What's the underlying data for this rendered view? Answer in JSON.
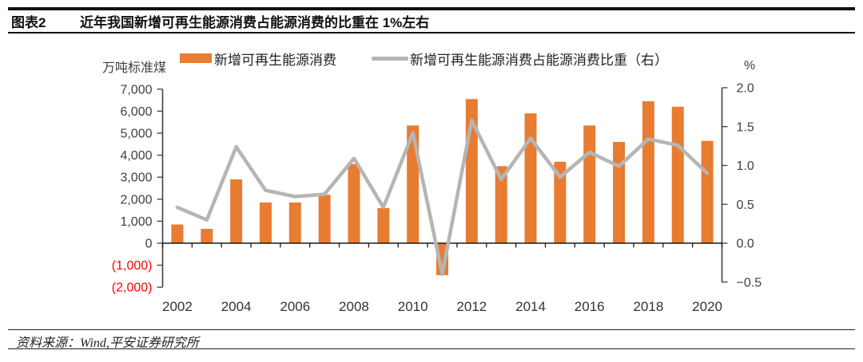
{
  "header": {
    "tag": "图表2",
    "title": "近年我国新增可再生能源消费占能源消费的比重在 1%左右"
  },
  "footer": {
    "source": "资料来源：Wind,平安证券研究所"
  },
  "chart_data": {
    "type": "bar+line combo (dual axis)",
    "grid": false,
    "legend_position": "top",
    "categories": [
      2002,
      2003,
      2004,
      2005,
      2006,
      2007,
      2008,
      2009,
      2010,
      2011,
      2012,
      2013,
      2014,
      2015,
      2016,
      2017,
      2018,
      2019,
      2020
    ],
    "x_tick_labels": [
      "2002",
      "2004",
      "2006",
      "2008",
      "2010",
      "2012",
      "2014",
      "2016",
      "2018",
      "2020"
    ],
    "series": [
      {
        "name": "新增可再生能源消费",
        "type": "bar",
        "axis": "left",
        "color": "#E87C30",
        "values": [
          850,
          650,
          2900,
          1850,
          1850,
          2200,
          3600,
          1600,
          5350,
          -1450,
          6550,
          3500,
          5900,
          3700,
          5350,
          4600,
          6450,
          6200,
          4650
        ]
      },
      {
        "name": "新增可再生能源消费占能源消费比重（右）",
        "type": "line",
        "axis": "right",
        "color": "#B5B5B5",
        "values": [
          0.46,
          0.3,
          1.24,
          0.68,
          0.6,
          0.63,
          1.09,
          0.46,
          1.42,
          -0.4,
          1.58,
          0.82,
          1.35,
          0.85,
          1.17,
          0.99,
          1.34,
          1.26,
          0.9
        ]
      }
    ],
    "left_axis": {
      "unit": "万吨标准煤",
      "min": -2000,
      "max": 7000,
      "step": 1000,
      "negative_label_color": "#FF0000",
      "ticks": [
        {
          "value": 7000,
          "label": "7,000",
          "color": "#3f3f3f"
        },
        {
          "value": 6000,
          "label": "6,000",
          "color": "#3f3f3f"
        },
        {
          "value": 5000,
          "label": "5,000",
          "color": "#3f3f3f"
        },
        {
          "value": 4000,
          "label": "4,000",
          "color": "#3f3f3f"
        },
        {
          "value": 3000,
          "label": "3,000",
          "color": "#3f3f3f"
        },
        {
          "value": 2000,
          "label": "2,000",
          "color": "#3f3f3f"
        },
        {
          "value": 1000,
          "label": "1,000",
          "color": "#3f3f3f"
        },
        {
          "value": 0,
          "label": "0",
          "color": "#3f3f3f"
        },
        {
          "value": -1000,
          "label": "(1,000)",
          "color": "#FF0000"
        },
        {
          "value": -2000,
          "label": "(2,000)",
          "color": "#FF0000"
        }
      ]
    },
    "right_axis": {
      "unit": "%",
      "min": -0.5,
      "max": 2.0,
      "step": 0.5,
      "ticks": [
        {
          "value": 2.0,
          "label": "2.0",
          "color": "#3f3f3f"
        },
        {
          "value": 1.5,
          "label": "1.5",
          "color": "#3f3f3f"
        },
        {
          "value": 1.0,
          "label": "1.0",
          "color": "#3f3f3f"
        },
        {
          "value": 0.5,
          "label": "0.5",
          "color": "#3f3f3f"
        },
        {
          "value": 0.0,
          "label": "0.0",
          "color": "#3f3f3f"
        },
        {
          "value": -0.5,
          "label": "−0.5",
          "color": "#3f3f3f"
        }
      ]
    }
  }
}
